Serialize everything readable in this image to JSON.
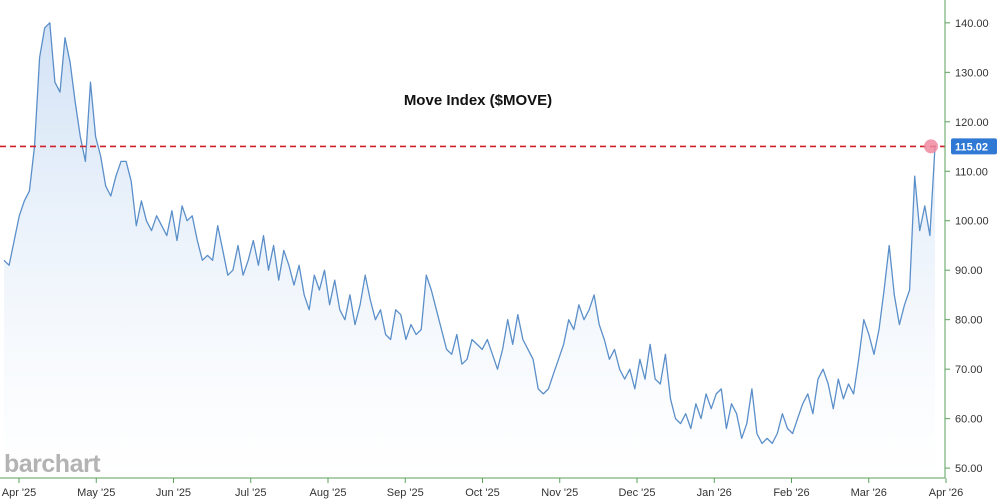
{
  "watermark": "barchart",
  "chart_data": {
    "type": "area",
    "title": "Move Index ($MOVE)",
    "xlabel": "",
    "ylabel": "",
    "x_tick_labels": [
      "Apr '25",
      "May '25",
      "Jun '25",
      "Jul '25",
      "Aug '25",
      "Sep '25",
      "Oct '25",
      "Nov '25",
      "Dec '25",
      "Jan '26",
      "Feb '26",
      "Mar '26",
      "Apr '26"
    ],
    "y_tick_labels": [
      "140.00",
      "130.00",
      "120.00",
      "110.00",
      "100.00",
      "90.00",
      "80.00",
      "70.00",
      "60.00",
      "50.00"
    ],
    "ylim": [
      48,
      143
    ],
    "y_ticks": [
      140,
      130,
      120,
      110,
      100,
      90,
      80,
      70,
      60,
      50
    ],
    "last_value": 115.02,
    "last_value_label": "115.02",
    "reference_line": 115.02,
    "grid": false,
    "colors": {
      "line": "#5b8fc9",
      "fill_top": "#cfe0f5",
      "fill_bottom": "#ffffff",
      "reference_line": "#d0202a",
      "last_marker": "#f08aa0",
      "last_label_bg": "#2f78d4",
      "axis": "#5aa05a"
    },
    "series": [
      {
        "values": [
          92,
          91,
          96,
          101,
          104,
          106,
          115,
          133,
          139,
          140,
          128,
          126,
          137,
          132,
          124,
          117,
          112,
          128,
          117,
          113,
          107,
          105,
          109,
          112,
          112,
          108,
          99,
          104,
          100,
          98,
          101,
          99,
          97,
          102,
          96,
          103,
          100,
          101,
          96,
          92,
          93,
          92,
          99,
          94,
          89,
          90,
          95,
          89,
          92,
          96,
          91,
          97,
          90,
          95,
          88,
          94,
          91,
          87,
          91,
          85,
          82,
          89,
          86,
          90,
          83,
          88,
          82,
          80,
          85,
          79,
          83,
          89,
          84,
          80,
          82,
          77,
          76,
          82,
          81,
          76,
          79,
          77,
          78,
          89,
          86,
          82,
          78,
          74,
          73,
          77,
          71,
          72,
          76,
          75,
          74,
          76,
          73,
          70,
          74,
          80,
          75,
          81,
          76,
          74,
          72,
          66,
          65,
          66,
          69,
          72,
          75,
          80,
          78,
          83,
          80,
          82,
          85,
          79,
          76,
          72,
          74,
          70,
          68,
          70,
          66,
          72,
          68,
          75,
          68,
          67,
          73,
          64,
          60,
          59,
          61,
          58,
          63,
          60,
          65,
          62,
          65,
          66,
          58,
          63,
          61,
          56,
          59,
          66,
          57,
          55,
          56,
          55,
          57,
          61,
          58,
          57,
          60,
          63,
          65,
          61,
          68,
          70,
          67,
          62,
          68,
          64,
          67,
          65,
          72,
          80,
          77,
          73,
          78,
          86,
          95,
          85,
          79,
          83,
          86,
          109,
          98,
          103,
          97,
          115.02
        ]
      }
    ]
  }
}
